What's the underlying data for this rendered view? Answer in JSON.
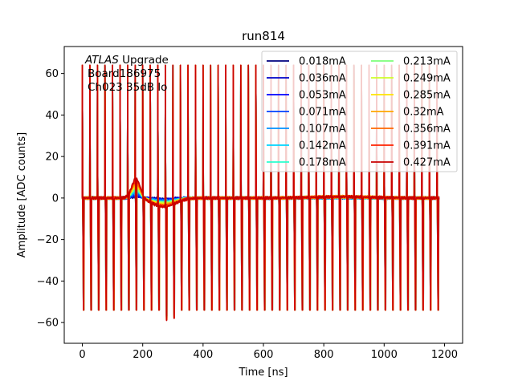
{
  "chart_data": {
    "type": "line",
    "title": "run814",
    "xlabel": "Time [ns]",
    "ylabel": "Amplitude [ADC counts]",
    "xlim": [
      -60,
      1260
    ],
    "ylim": [
      -70,
      73
    ],
    "xticks": [
      0,
      200,
      400,
      600,
      800,
      1000,
      1200
    ],
    "yticks": [
      -60,
      -40,
      -20,
      0,
      20,
      40,
      60
    ],
    "grid": false,
    "legend_placement": "top-right",
    "legend_columns": 2,
    "annotation": {
      "line1_italic": "ATLAS",
      "line1_rest": " Upgrade",
      "line2": "Board186975",
      "line3": "Ch023 35dB lo"
    },
    "pulse_train": {
      "first_time_ns": 0,
      "spacing_ns": 25,
      "count": 48,
      "positive_spike_peak": 64,
      "negative_spike_trough": -54
    },
    "series": [
      {
        "name": "0.018mA",
        "color": "#00007f",
        "bump_peak": 0.6,
        "undershoot": -0.4
      },
      {
        "name": "0.036mA",
        "color": "#0000c8",
        "bump_peak": 1.0,
        "undershoot": -0.6
      },
      {
        "name": "0.053mA",
        "color": "#0000ff",
        "bump_peak": 1.5,
        "undershoot": -0.9
      },
      {
        "name": "0.071mA",
        "color": "#0040ff",
        "bump_peak": 2.0,
        "undershoot": -1.1
      },
      {
        "name": "0.107mA",
        "color": "#0090ff",
        "bump_peak": 2.8,
        "undershoot": -1.5
      },
      {
        "name": "0.142mA",
        "color": "#00d4ff",
        "bump_peak": 3.5,
        "undershoot": -1.8
      },
      {
        "name": "0.178mA",
        "color": "#29ffce",
        "bump_peak": 4.2,
        "undershoot": -2.1
      },
      {
        "name": "0.213mA",
        "color": "#7dff7a",
        "bump_peak": 4.9,
        "undershoot": -2.4
      },
      {
        "name": "0.249mA",
        "color": "#ceff29",
        "bump_peak": 5.6,
        "undershoot": -2.7
      },
      {
        "name": "0.285mA",
        "color": "#ffe500",
        "bump_peak": 6.3,
        "undershoot": -3.0
      },
      {
        "name": "0.32mA",
        "color": "#ffa700",
        "bump_peak": 7.0,
        "undershoot": -3.3
      },
      {
        "name": "0.356mA",
        "color": "#ff6800",
        "bump_peak": 7.8,
        "undershoot": -3.6
      },
      {
        "name": "0.391mA",
        "color": "#ff2200",
        "bump_peak": 8.6,
        "undershoot": -3.9
      },
      {
        "name": "0.427mA",
        "color": "#c80000",
        "bump_peak": 9.5,
        "undershoot": -4.2
      }
    ]
  }
}
